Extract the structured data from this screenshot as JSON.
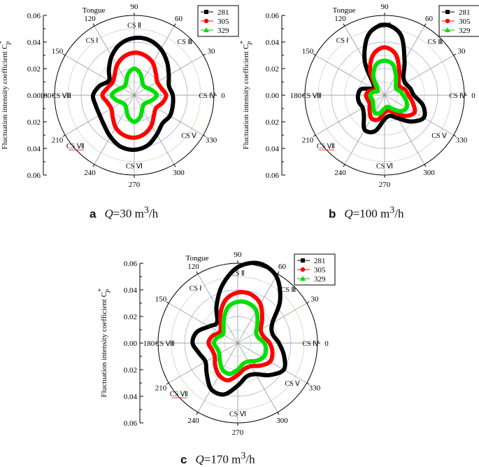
{
  "chart_data": [
    {
      "type": "polar-line",
      "panel_label": "a",
      "caption": {
        "q": "Q",
        "value": "=30 m",
        "sup": "3",
        "unit": "/h"
      },
      "ylabel": "Fluctuation intensity coefficient C",
      "ylabel_sub": "p",
      "ylabel_sup": "*",
      "r_ticks": [
        "0.06",
        "0.04",
        "0.02",
        "0.00",
        "0.02",
        "0.04",
        "0.06"
      ],
      "rlim": [
        0,
        0.06
      ],
      "angle_ticks": [
        "0",
        "30",
        "60",
        "90",
        "120",
        "150",
        "180",
        "210",
        "240",
        "270",
        "300",
        "330"
      ],
      "sections": [
        "CS I",
        "CS II",
        "CS III",
        "CS IV",
        "CS V",
        "CS VI",
        "CS VII",
        "CS VIII"
      ],
      "tongue_label": "Tongue",
      "legend": [
        "281",
        "305",
        "329"
      ],
      "series": [
        {
          "name": "281",
          "color": "#000000",
          "marker": "square",
          "angles": [
            0,
            15,
            30,
            45,
            60,
            75,
            90,
            105,
            120,
            135,
            150,
            165,
            180,
            195,
            210,
            225,
            240,
            255,
            270,
            285,
            300,
            315,
            330,
            345
          ],
          "values": [
            0.029,
            0.027,
            0.03,
            0.035,
            0.04,
            0.043,
            0.043,
            0.04,
            0.034,
            0.027,
            0.022,
            0.027,
            0.031,
            0.03,
            0.03,
            0.032,
            0.036,
            0.04,
            0.041,
            0.039,
            0.034,
            0.03,
            0.031,
            0.03
          ]
        },
        {
          "name": "305",
          "color": "#ff0000",
          "marker": "circle",
          "angles": [
            0,
            15,
            30,
            45,
            60,
            75,
            90,
            105,
            120,
            135,
            150,
            165,
            180,
            195,
            210,
            225,
            240,
            255,
            270,
            285,
            300,
            315,
            330,
            345
          ],
          "values": [
            0.024,
            0.021,
            0.02,
            0.023,
            0.028,
            0.031,
            0.032,
            0.03,
            0.026,
            0.021,
            0.019,
            0.021,
            0.024,
            0.021,
            0.02,
            0.023,
            0.028,
            0.031,
            0.032,
            0.03,
            0.026,
            0.021,
            0.019,
            0.022
          ]
        },
        {
          "name": "329",
          "color": "#00e000",
          "marker": "triangle",
          "angles": [
            0,
            15,
            30,
            45,
            60,
            75,
            90,
            105,
            120,
            135,
            150,
            165,
            180,
            195,
            210,
            225,
            240,
            255,
            270,
            285,
            300,
            315,
            330,
            345
          ],
          "values": [
            0.017,
            0.014,
            0.011,
            0.01,
            0.012,
            0.017,
            0.02,
            0.017,
            0.012,
            0.01,
            0.011,
            0.014,
            0.017,
            0.014,
            0.011,
            0.01,
            0.012,
            0.017,
            0.02,
            0.017,
            0.012,
            0.01,
            0.011,
            0.014
          ]
        }
      ]
    },
    {
      "type": "polar-line",
      "panel_label": "b",
      "caption": {
        "q": "Q",
        "value": "=100 m",
        "sup": "3",
        "unit": "/h"
      },
      "ylabel": "Fluctuation intensity coefficient C",
      "ylabel_sub": "p",
      "ylabel_sup": "*",
      "r_ticks": [
        "0.06",
        "0.04",
        "0.02",
        "0.00",
        "0.02",
        "0.04",
        "0.06"
      ],
      "rlim": [
        0,
        0.06
      ],
      "angle_ticks": [
        "0",
        "30",
        "60",
        "90",
        "120",
        "150",
        "180",
        "210",
        "240",
        "270",
        "300",
        "330"
      ],
      "sections": [
        "CS I",
        "CS II",
        "CS III",
        "CS IV",
        "CS V",
        "CS VI",
        "CS VII",
        "CS VIII"
      ],
      "tongue_label": "Tongue",
      "legend": [
        "281",
        "305",
        "329"
      ],
      "series": [
        {
          "name": "281",
          "color": "#000000",
          "marker": "square",
          "angles": [
            0,
            15,
            30,
            45,
            60,
            75,
            90,
            105,
            120,
            135,
            150,
            165,
            180,
            195,
            210,
            225,
            240,
            255,
            270,
            285,
            300,
            315,
            330,
            345
          ],
          "values": [
            0.022,
            0.02,
            0.018,
            0.02,
            0.03,
            0.047,
            0.053,
            0.047,
            0.03,
            0.012,
            0.01,
            0.018,
            0.02,
            0.02,
            0.019,
            0.022,
            0.03,
            0.028,
            0.018,
            0.016,
            0.02,
            0.028,
            0.034,
            0.03
          ]
        },
        {
          "name": "305",
          "color": "#ff0000",
          "marker": "circle",
          "angles": [
            0,
            15,
            30,
            45,
            60,
            75,
            90,
            105,
            120,
            135,
            150,
            165,
            180,
            195,
            210,
            225,
            240,
            255,
            270,
            285,
            300,
            315,
            330,
            345
          ],
          "values": [
            0.018,
            0.016,
            0.013,
            0.015,
            0.022,
            0.032,
            0.036,
            0.032,
            0.022,
            0.01,
            0.008,
            0.012,
            0.014,
            0.013,
            0.013,
            0.016,
            0.02,
            0.019,
            0.013,
            0.012,
            0.015,
            0.022,
            0.026,
            0.022
          ]
        },
        {
          "name": "329",
          "color": "#00e000",
          "marker": "triangle",
          "angles": [
            0,
            15,
            30,
            45,
            60,
            75,
            90,
            105,
            120,
            135,
            150,
            165,
            180,
            195,
            210,
            225,
            240,
            255,
            270,
            285,
            300,
            315,
            330,
            345
          ],
          "values": [
            0.014,
            0.012,
            0.01,
            0.012,
            0.017,
            0.024,
            0.026,
            0.024,
            0.017,
            0.008,
            0.006,
            0.009,
            0.011,
            0.01,
            0.01,
            0.012,
            0.015,
            0.014,
            0.01,
            0.009,
            0.012,
            0.017,
            0.019,
            0.017
          ]
        }
      ]
    },
    {
      "type": "polar-line",
      "panel_label": "c",
      "caption": {
        "q": "Q",
        "value": "=170 m",
        "sup": "3",
        "unit": "/h"
      },
      "ylabel": "Fluctuation intensity coefficient C",
      "ylabel_sub": "p",
      "ylabel_sup": "*",
      "r_ticks": [
        "0.06",
        "0.04",
        "0.02",
        "0.00",
        "0.02",
        "0.04",
        "0.06"
      ],
      "rlim": [
        0,
        0.06
      ],
      "angle_ticks": [
        "0",
        "30",
        "60",
        "90",
        "120",
        "150",
        "180",
        "210",
        "240",
        "270",
        "300",
        "330"
      ],
      "sections": [
        "CS I",
        "CS II",
        "CS III",
        "CS IV",
        "CS V",
        "CS VI",
        "CS VII",
        "CS VIII"
      ],
      "tongue_label": "Tongue",
      "legend": [
        "281",
        "305",
        "329"
      ],
      "series": [
        {
          "name": "281",
          "color": "#000000",
          "marker": "square",
          "angles": [
            0,
            15,
            30,
            45,
            60,
            75,
            90,
            105,
            120,
            135,
            150,
            165,
            180,
            195,
            210,
            225,
            240,
            255,
            270,
            285,
            300,
            315,
            330,
            345
          ],
          "values": [
            0.031,
            0.027,
            0.03,
            0.045,
            0.058,
            0.062,
            0.057,
            0.045,
            0.032,
            0.022,
            0.025,
            0.032,
            0.034,
            0.03,
            0.028,
            0.033,
            0.04,
            0.04,
            0.032,
            0.026,
            0.027,
            0.034,
            0.04,
            0.036
          ]
        },
        {
          "name": "305",
          "color": "#ff0000",
          "marker": "circle",
          "angles": [
            0,
            15,
            30,
            45,
            60,
            75,
            90,
            105,
            120,
            135,
            150,
            165,
            180,
            195,
            210,
            225,
            240,
            255,
            270,
            285,
            300,
            315,
            330,
            345
          ],
          "values": [
            0.024,
            0.02,
            0.02,
            0.026,
            0.034,
            0.038,
            0.038,
            0.034,
            0.026,
            0.018,
            0.016,
            0.02,
            0.022,
            0.02,
            0.02,
            0.024,
            0.028,
            0.029,
            0.024,
            0.02,
            0.02,
            0.024,
            0.028,
            0.027
          ]
        },
        {
          "name": "329",
          "color": "#00e000",
          "marker": "triangle",
          "angles": [
            0,
            15,
            30,
            45,
            60,
            75,
            90,
            105,
            120,
            135,
            150,
            165,
            180,
            195,
            210,
            225,
            240,
            255,
            270,
            285,
            300,
            315,
            330,
            345
          ],
          "values": [
            0.02,
            0.016,
            0.016,
            0.021,
            0.028,
            0.031,
            0.031,
            0.028,
            0.021,
            0.015,
            0.013,
            0.016,
            0.018,
            0.016,
            0.016,
            0.019,
            0.023,
            0.024,
            0.02,
            0.016,
            0.016,
            0.019,
            0.022,
            0.022
          ]
        }
      ]
    }
  ]
}
